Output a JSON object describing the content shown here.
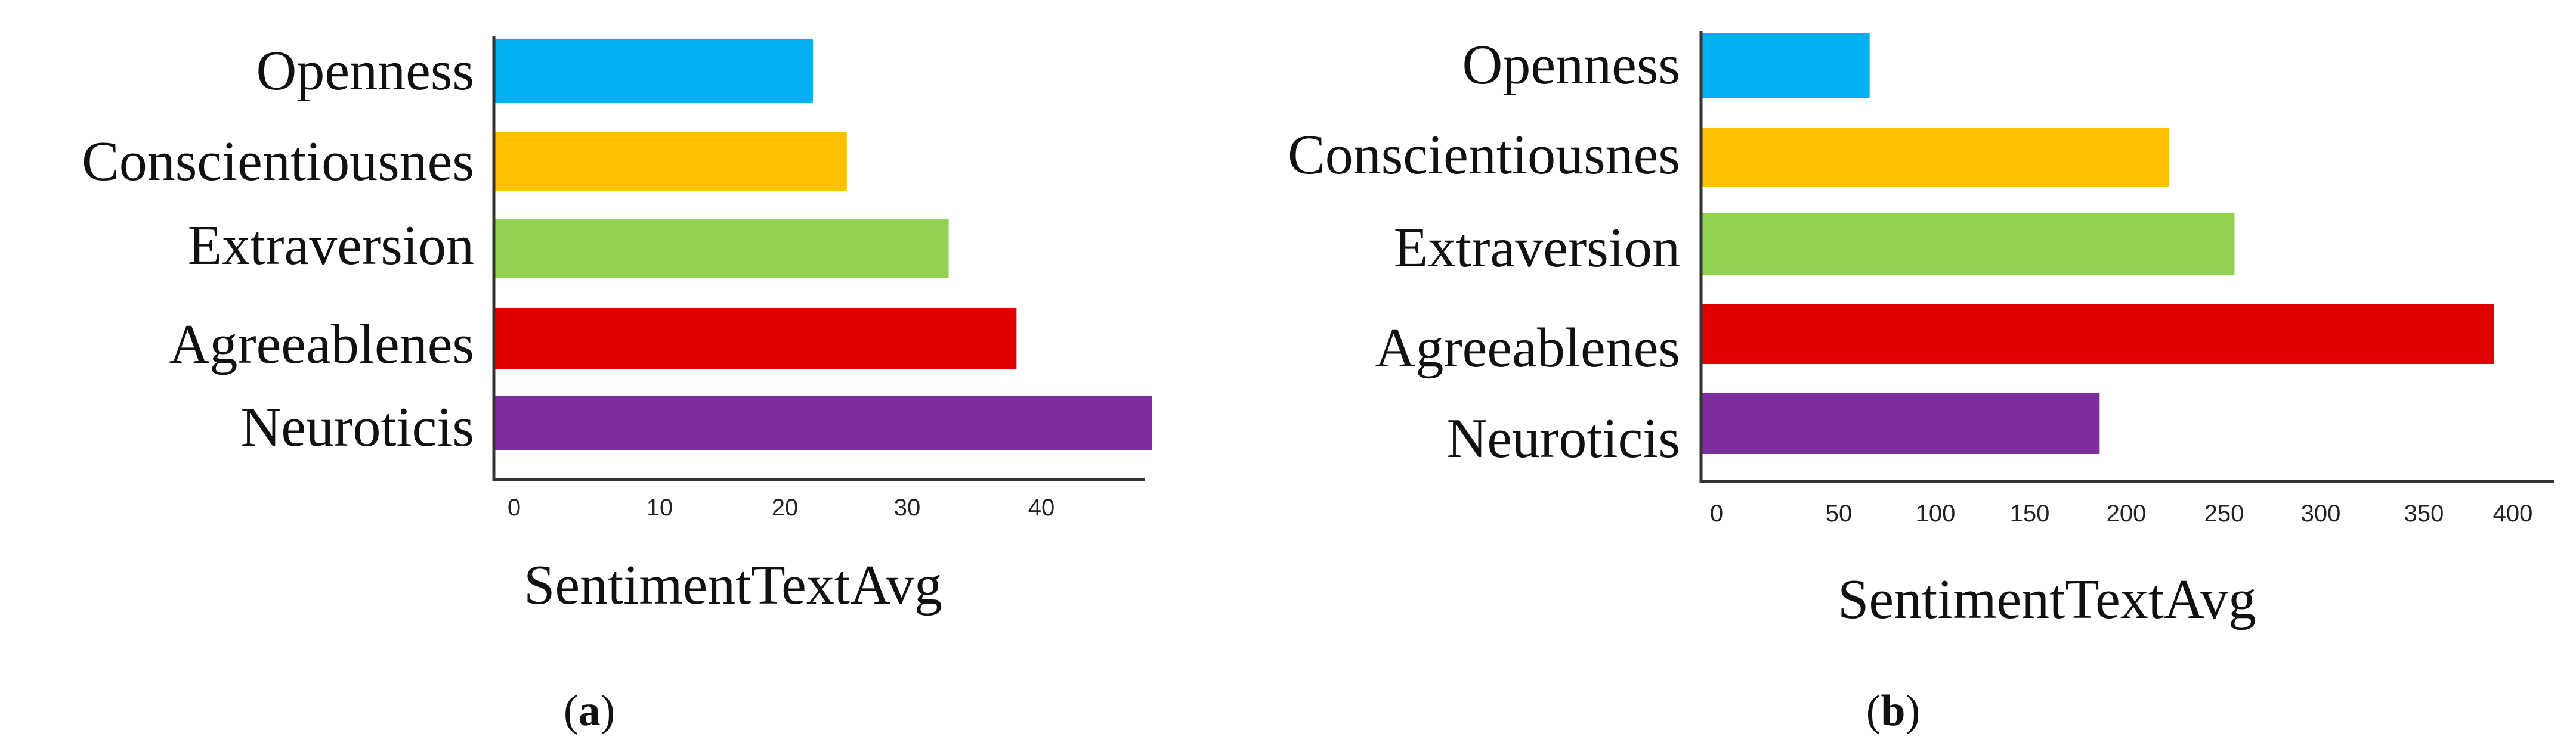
{
  "chart_data": [
    {
      "type": "bar",
      "orientation": "horizontal",
      "panel_label": "a",
      "categories": [
        "Openness",
        "Conscientiousnes",
        "Extraversion",
        "Agreeablenes",
        "Neuroticis"
      ],
      "values": [
        23.5,
        26,
        33.5,
        38.5,
        48.5
      ],
      "colors": [
        "#00B0F0",
        "#FFC000",
        "#92D050",
        "#E00000",
        "#7F2EA0"
      ],
      "xlabel": "SentimentTextAvg",
      "ticks": [
        0,
        10,
        20,
        30,
        40
      ],
      "xlim": [
        0,
        48.5
      ],
      "grid": false
    },
    {
      "type": "bar",
      "orientation": "horizontal",
      "panel_label": "b",
      "categories": [
        "Openness",
        "Conscientiousnes",
        "Extraversion",
        "Agreeablenes",
        "Neuroticis"
      ],
      "values": [
        85,
        236,
        269,
        400,
        201
      ],
      "colors": [
        "#00B0F0",
        "#FFC000",
        "#92D050",
        "#E00000",
        "#7F2EA0"
      ],
      "xlabel": "SentimentTextAvg",
      "ticks": [
        0,
        50,
        100,
        150,
        200,
        250,
        300,
        350,
        400
      ],
      "xlim": [
        0,
        420
      ],
      "grid": false
    }
  ]
}
